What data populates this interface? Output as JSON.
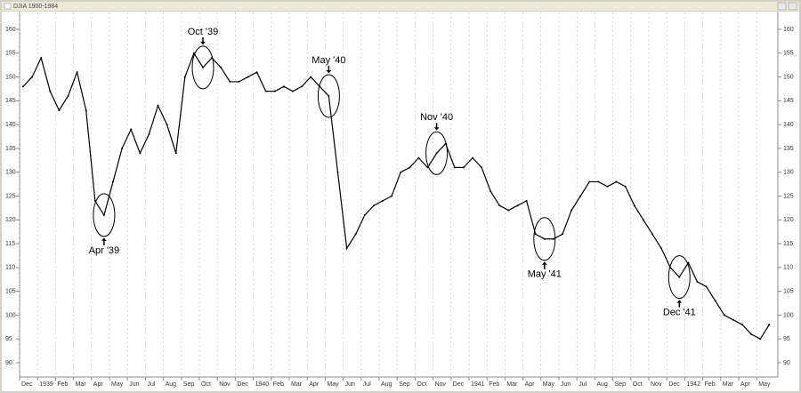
{
  "window_title": "DJIA 1900-1984",
  "chart_data": {
    "type": "line",
    "color": "#000000",
    "grid": true,
    "categories": [
      "Dec",
      null,
      "1939",
      null,
      "Feb",
      null,
      "Mar",
      null,
      "Apr",
      null,
      "May",
      null,
      "Jun",
      null,
      "Jul",
      null,
      "Aug",
      null,
      "Sep",
      null,
      "Oct",
      null,
      "Nov",
      null,
      "Dec",
      null,
      "1940",
      null,
      "Feb",
      null,
      "Mar",
      null,
      "Apr",
      null,
      "May",
      null,
      "Jun",
      null,
      "Jul",
      null,
      "Aug",
      null,
      "Sep",
      null,
      "Oct",
      null,
      "Nov",
      null,
      "Dec",
      null,
      "1941",
      null,
      "Feb",
      null,
      "Mar",
      null,
      "Apr",
      null,
      "May",
      null,
      "Jun",
      null,
      "Jul",
      null,
      "Aug",
      null,
      "Sep",
      null,
      "Oct",
      null,
      "Nov",
      null,
      "Dec",
      null,
      "1942",
      null,
      "Feb",
      null,
      "Mar",
      null,
      "Apr",
      null,
      "May",
      null
    ],
    "values": [
      148,
      150,
      154,
      147,
      143,
      146,
      151,
      143,
      124,
      121,
      128,
      135,
      139,
      134,
      138,
      144,
      140,
      134,
      150,
      155,
      152,
      154,
      152,
      149,
      149,
      150,
      151,
      147,
      147,
      148,
      147,
      148,
      150,
      148,
      146,
      130,
      114,
      117,
      121,
      123,
      124,
      125,
      130,
      131,
      133,
      131,
      134,
      136,
      131,
      131,
      133,
      131,
      126,
      123,
      122,
      123,
      124,
      117,
      116,
      116,
      117,
      122,
      125,
      128,
      128,
      127,
      128,
      127,
      123,
      120,
      117,
      114,
      110,
      108,
      111,
      107,
      106,
      103,
      100,
      99,
      98,
      96,
      95,
      98
    ],
    "ylim": [
      90,
      160
    ],
    "yticks": [
      90,
      95,
      100,
      105,
      110,
      115,
      120,
      125,
      130,
      135,
      140,
      145,
      150,
      155,
      160
    ],
    "annotations": [
      "Apr '39",
      "Oct '39",
      "May '40",
      "Nov '40",
      "May '41",
      "Dec '41"
    ]
  }
}
